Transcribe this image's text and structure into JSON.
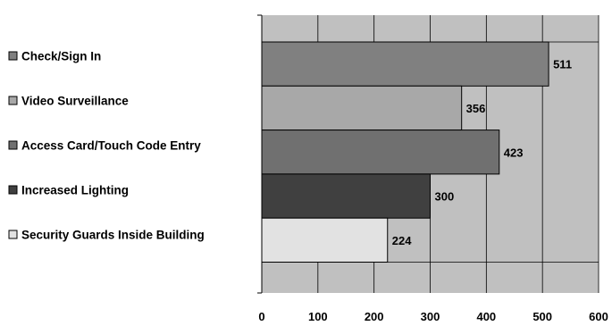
{
  "chart_data": {
    "type": "bar",
    "orientation": "horizontal",
    "title": "",
    "xlabel": "",
    "ylabel": "",
    "categories": [
      "Check/Sign In",
      "Video Surveillance",
      "Access Card/Touch Code Entry",
      "Increased Lighting",
      "Security Guards Inside Building"
    ],
    "values": [
      511,
      356,
      423,
      300,
      224
    ],
    "data_labels": [
      "511",
      "356",
      "423",
      "300",
      "224"
    ],
    "bar_colors": [
      "#808080",
      "#a8a8a8",
      "#707070",
      "#404040",
      "#e2e2e2"
    ],
    "plot_background": "#c0c0c0",
    "xlim": [
      0,
      600
    ],
    "x_ticks": [
      "0",
      "100",
      "200",
      "300",
      "400",
      "500",
      "600"
    ],
    "grid": "vertical",
    "legend": "left"
  }
}
